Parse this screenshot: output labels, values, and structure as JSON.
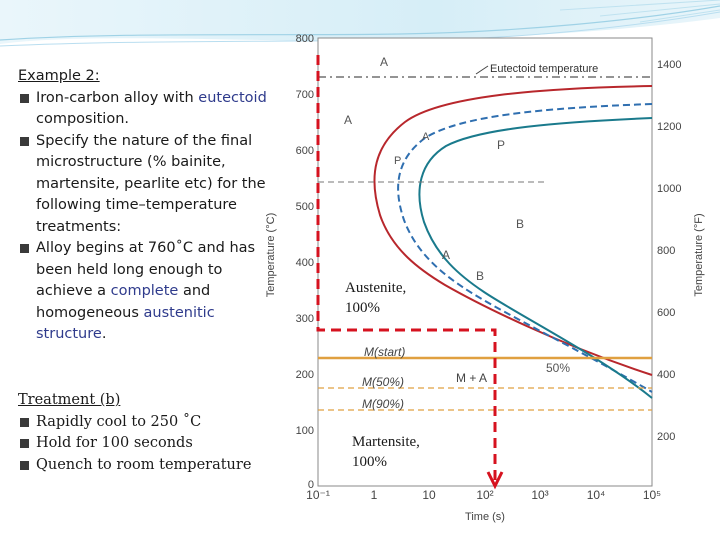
{
  "left": {
    "heading": "Example 2:",
    "bullets": [
      {
        "pre": "Iron-carbon alloy with ",
        "hl": "eutectoid",
        "post": " composition."
      },
      {
        "text": "Specify the nature of the final microstructure (% bainite, martensite, pearlite etc) for the following time–temperature treatments:"
      },
      {
        "pre": "Alloy begins at 760˚C and has been held long enough to achieve a ",
        "hl1": "complete",
        "mid": " and homogeneous ",
        "hl2": "austenitic structure",
        "post": "."
      }
    ]
  },
  "treatment": {
    "heading": "Treatment (b)",
    "steps": [
      "Rapidly cool to 250 ˚C",
      "Hold for 100 seconds",
      "Quench to room temperature"
    ]
  },
  "overlay": {
    "austenite": [
      "Austenite,",
      "100%"
    ],
    "martensite": [
      "Martensite,",
      "100%"
    ]
  },
  "chart_data": {
    "type": "line",
    "xlabel": "Time (s)",
    "ylabel_left": "Temperature (°C)",
    "ylabel_right": "Temperature (°F)",
    "x_ticks": [
      "10⁻¹",
      "1",
      "10",
      "10²",
      "10³",
      "10⁴",
      "10⁵"
    ],
    "y_ticks_c": [
      "0",
      "100",
      "200",
      "300",
      "400",
      "500",
      "600",
      "700",
      "800"
    ],
    "y_ticks_f": [
      "200",
      "400",
      "600",
      "800",
      "1000",
      "1200",
      "1400"
    ],
    "regions": {
      "A_top": "A",
      "A_left": "A",
      "P": "P",
      "B": "B",
      "A_mid": "A",
      "B_mid": "B",
      "MA": "M + A"
    },
    "curve_labels": {
      "start_A": "A",
      "start_P": "P",
      "pct50": "50%"
    },
    "lines": {
      "eutectoid": "Eutectoid temperature",
      "mstart": "M(start)",
      "m50": "M(50%)",
      "m90": "M(90%)"
    },
    "temperatures_c": {
      "eutectoid": 727,
      "mstart": 220,
      "m50": 160,
      "m90": 110
    },
    "path_c": {
      "start": 760,
      "hold": 250,
      "hold_time_s": 100
    },
    "colors": {
      "start_curve": "#b8272c",
      "finish_curve": "#1a7a8c",
      "pct50_curve": "#2f6fb0",
      "path": "#d6121f",
      "mstart": "#e0a040",
      "eutectoid": "#555555"
    }
  }
}
